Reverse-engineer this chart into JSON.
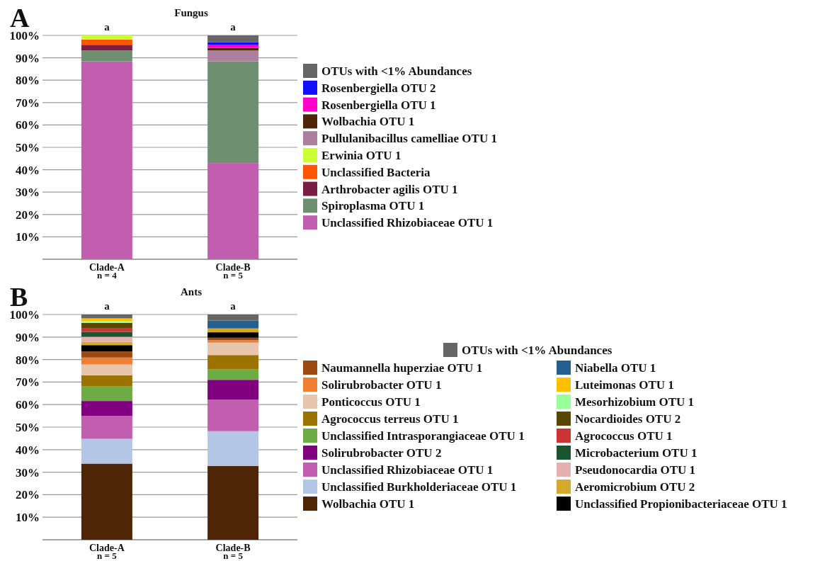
{
  "chart_data": [
    {
      "type": "bar",
      "stacked": true,
      "title": "Fungus",
      "categories": [
        "Clade-A",
        "Clade-B"
      ],
      "ylim": [
        0,
        100
      ],
      "yticks": [
        {
          "value": 10,
          "label": "10%"
        },
        {
          "value": 20,
          "label": "20%"
        },
        {
          "value": 30,
          "label": "30%"
        },
        {
          "value": 40,
          "label": "40%"
        },
        {
          "value": 50,
          "label": "50%"
        },
        {
          "value": 60,
          "label": "60%"
        },
        {
          "value": 70,
          "label": "70%"
        },
        {
          "value": 80,
          "label": "80%"
        },
        {
          "value": 90,
          "label": "90%"
        },
        {
          "value": 100,
          "label": "100%"
        }
      ],
      "grid": "y",
      "legend": "right",
      "annotations": [
        "A",
        "a",
        "a",
        "n = 4",
        "n = 5"
      ],
      "series": [
        {
          "name": "Unclassified Rhizobiaceae OTU 1",
          "color": "#c25eb0",
          "values": [
            88.4,
            43
          ]
        },
        {
          "name": "Spiroplasma OTU 1",
          "color": "#6f9070",
          "values": [
            4.9,
            45.4
          ]
        },
        {
          "name": "Arthrobacter agilis OTU 1",
          "color": "#7a1e45",
          "values": [
            2.5,
            0
          ]
        },
        {
          "name": "Unclassified Bacteria",
          "color": "#ff5500",
          "values": [
            2.3,
            0
          ]
        },
        {
          "name": "Erwinia OTU 1",
          "color": "#ccff33",
          "values": [
            1.9,
            0
          ]
        },
        {
          "name": "Pullulanibacillus camelliae OTU 1",
          "color": "#ad7f9e",
          "values": [
            0,
            4.9
          ]
        },
        {
          "name": "Wolbachia OTU 1",
          "color": "#4e2506",
          "values": [
            0,
            1.1
          ]
        },
        {
          "name": "Rosenbergiella OTU 1",
          "color": "#ff00cc",
          "values": [
            0,
            1.3
          ]
        },
        {
          "name": "Rosenbergiella OTU 2",
          "color": "#1010ff",
          "values": [
            0,
            1.3
          ]
        },
        {
          "name": "OTUs with <1% Abundances",
          "color": "#666666",
          "values": [
            0,
            3.0
          ]
        }
      ]
    },
    {
      "type": "bar",
      "stacked": true,
      "title": "Ants",
      "categories": [
        "Clade-A",
        "Clade-B"
      ],
      "ylim": [
        0,
        100
      ],
      "yticks": [
        {
          "value": 10,
          "label": "10%"
        },
        {
          "value": 20,
          "label": "20%"
        },
        {
          "value": 30,
          "label": "30%"
        },
        {
          "value": 40,
          "label": "40%"
        },
        {
          "value": 50,
          "label": "50%"
        },
        {
          "value": 60,
          "label": "60%"
        },
        {
          "value": 70,
          "label": "70%"
        },
        {
          "value": 80,
          "label": "80%"
        },
        {
          "value": 90,
          "label": "90%"
        },
        {
          "value": 100,
          "label": "100%"
        }
      ],
      "grid": "y",
      "legend": "right",
      "annotations": [
        "B",
        "a",
        "a",
        "n = 5",
        "n = 5"
      ],
      "series": [
        {
          "name": "Wolbachia OTU 1",
          "color": "#4e2506",
          "values": [
            33.8,
            32.8
          ]
        },
        {
          "name": "Unclassified Burkholderiaceae OTU 1",
          "color": "#b3c6e6",
          "values": [
            11.0,
            15.4
          ]
        },
        {
          "name": "Unclassified Rhizobiaceae OTU 1",
          "color": "#c25eb0",
          "values": [
            10.2,
            14.0
          ]
        },
        {
          "name": "Solirubrobacter OTU 2",
          "color": "#800080",
          "values": [
            6.6,
            8.8
          ]
        },
        {
          "name": "Unclassified Intrasporangiaceae OTU 1",
          "color": "#6dab45",
          "values": [
            6.6,
            4.6
          ]
        },
        {
          "name": "Agrococcus terreus OTU 1",
          "color": "#9a7300",
          "values": [
            4.8,
            6.4
          ]
        },
        {
          "name": "Ponticoccus OTU 1",
          "color": "#e8c6ae",
          "values": [
            4.8,
            5.5
          ]
        },
        {
          "name": "Solirubrobacter OTU 1",
          "color": "#ef7f34",
          "values": [
            3.1,
            1.1
          ]
        },
        {
          "name": "Naumannella huperziae OTU 1",
          "color": "#9c4a11",
          "values": [
            2.7,
            1.1
          ]
        },
        {
          "name": "Unclassified Propionibacteriaceae OTU 1",
          "color": "#000000",
          "values": [
            2.8,
            2.4
          ]
        },
        {
          "name": "Aeromicrobium OTU 2",
          "color": "#d4aa2c",
          "values": [
            1.5,
            1.7
          ]
        },
        {
          "name": "Pseudonocardia OTU 1",
          "color": "#e6b0b0",
          "values": [
            2.2,
            0
          ]
        },
        {
          "name": "Microbacterium OTU 1",
          "color": "#1a5532",
          "values": [
            2.2,
            0
          ]
        },
        {
          "name": "Agrococcus OTU 1",
          "color": "#cc3333",
          "values": [
            1.7,
            0
          ]
        },
        {
          "name": "Nocardioides OTU 2",
          "color": "#574700",
          "values": [
            2.3,
            0
          ]
        },
        {
          "name": "Mesorhizobium OTU 1",
          "color": "#99ff99",
          "values": [
            0.7,
            0
          ]
        },
        {
          "name": "Luteimonas OTU 1",
          "color": "#ffc000",
          "values": [
            1.3,
            0
          ]
        },
        {
          "name": "Niabella OTU 1",
          "color": "#245f92",
          "values": [
            0,
            3.5
          ]
        },
        {
          "name": "OTUs with <1% Abundances",
          "color": "#666666",
          "values": [
            1.7,
            2.7
          ]
        }
      ]
    }
  ]
}
